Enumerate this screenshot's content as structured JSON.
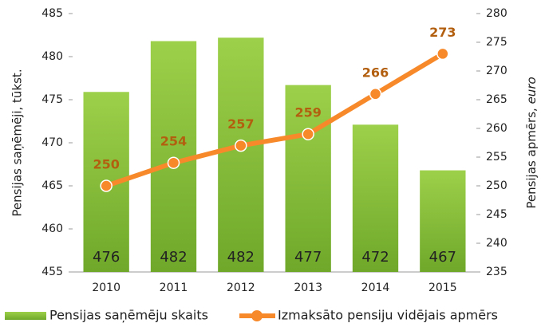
{
  "chart_data": {
    "type": "bar-line",
    "categories": [
      "2010",
      "2011",
      "2012",
      "2013",
      "2014",
      "2015"
    ],
    "y_label": "Pensijas saņēmēji, tūkst.",
    "y2_label_main": "Pensijas apmērs, ",
    "y2_label_unit": "euro",
    "ylim": [
      455,
      485
    ],
    "yticks": [
      455,
      460,
      465,
      470,
      475,
      480,
      485
    ],
    "y2lim": [
      235,
      280
    ],
    "y2ticks": [
      235,
      240,
      245,
      250,
      255,
      260,
      265,
      270,
      275,
      280
    ],
    "series": [
      {
        "name": "Pensijas saņēmēju skaits",
        "color": "#8cc43c",
        "values": [
          475.9,
          481.8,
          482.2,
          476.7,
          472.1,
          466.8
        ],
        "value_labels": [
          "476",
          "482",
          "482",
          "477",
          "472",
          "467"
        ]
      },
      {
        "name": "Izmaksāto pensiju vidējais apmērs",
        "color": "#f7892a",
        "axis": "y2",
        "values": [
          250,
          254,
          257,
          259,
          266,
          273
        ]
      }
    ]
  }
}
